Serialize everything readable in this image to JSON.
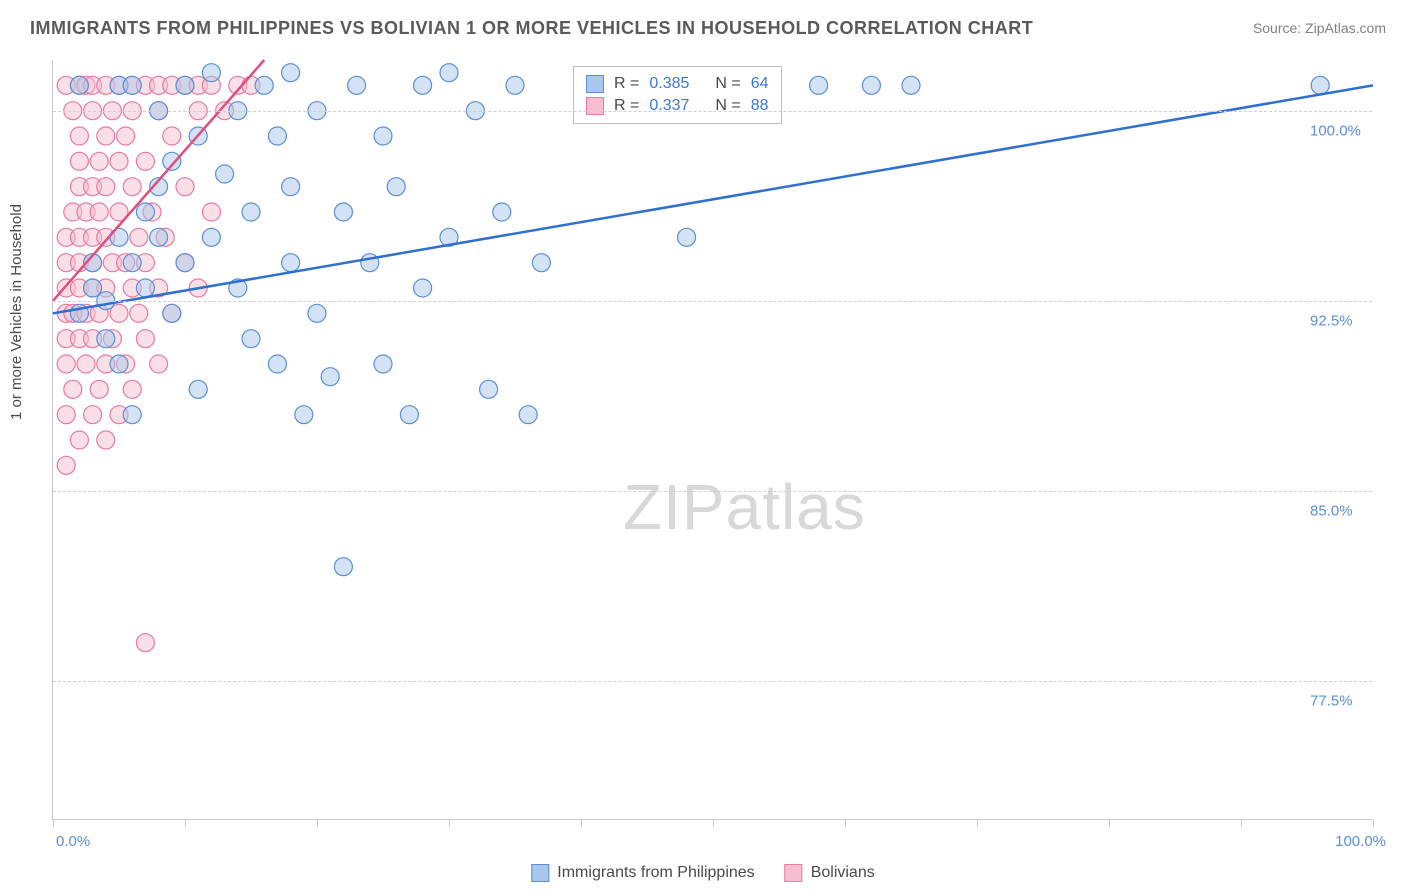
{
  "title": "IMMIGRANTS FROM PHILIPPINES VS BOLIVIAN 1 OR MORE VEHICLES IN HOUSEHOLD CORRELATION CHART",
  "source_label": "Source:",
  "source_value": "ZipAtlas.com",
  "ylabel": "1 or more Vehicles in Household",
  "watermark_a": "ZIP",
  "watermark_b": "atlas",
  "chart": {
    "type": "scatter",
    "xlim": [
      0,
      100
    ],
    "ylim": [
      72,
      102
    ],
    "x_axis_start_label": "0.0%",
    "x_axis_end_label": "100.0%",
    "x_ticks": [
      0,
      10,
      20,
      30,
      40,
      50,
      60,
      70,
      80,
      90,
      100
    ],
    "y_grid": [
      {
        "value": 100.0,
        "label": "100.0%"
      },
      {
        "value": 92.5,
        "label": "92.5%"
      },
      {
        "value": 85.0,
        "label": "85.0%"
      },
      {
        "value": 77.5,
        "label": "77.5%"
      }
    ],
    "marker_radius": 9,
    "marker_opacity": 0.5,
    "grid_color": "#d0d0d0",
    "axis_color": "#c8c8c8",
    "background_color": "#ffffff",
    "series": [
      {
        "id": "philippines",
        "label": "Immigrants from Philippines",
        "fill": "#a8c7ec",
        "stroke": "#5b8fd6",
        "line_color": "#2f6fd0",
        "R": "0.385",
        "N": "64",
        "trend": {
          "x1": 0,
          "y1": 92.0,
          "x2": 100,
          "y2": 101.0
        },
        "points": [
          [
            2,
            92
          ],
          [
            3,
            93
          ],
          [
            3,
            94
          ],
          [
            4,
            91
          ],
          [
            4,
            92.5
          ],
          [
            5,
            90
          ],
          [
            5,
            95
          ],
          [
            5,
            101
          ],
          [
            6,
            88
          ],
          [
            6,
            94
          ],
          [
            7,
            93
          ],
          [
            7,
            96
          ],
          [
            8,
            95
          ],
          [
            8,
            97
          ],
          [
            8,
            100
          ],
          [
            9,
            92
          ],
          [
            9,
            98
          ],
          [
            10,
            94
          ],
          [
            10,
            101
          ],
          [
            11,
            89
          ],
          [
            11,
            99
          ],
          [
            12,
            95
          ],
          [
            12,
            101.5
          ],
          [
            13,
            97.5
          ],
          [
            14,
            93
          ],
          [
            14,
            100
          ],
          [
            15,
            91
          ],
          [
            15,
            96
          ],
          [
            16,
            101
          ],
          [
            17,
            90
          ],
          [
            17,
            99
          ],
          [
            18,
            94
          ],
          [
            18,
            97
          ],
          [
            18,
            101.5
          ],
          [
            19,
            88
          ],
          [
            20,
            92
          ],
          [
            20,
            100
          ],
          [
            21,
            89.5
          ],
          [
            22,
            96
          ],
          [
            22,
            82
          ],
          [
            23,
            101
          ],
          [
            24,
            94
          ],
          [
            25,
            90
          ],
          [
            25,
            99
          ],
          [
            26,
            97
          ],
          [
            27,
            88
          ],
          [
            28,
            93
          ],
          [
            28,
            101
          ],
          [
            30,
            95
          ],
          [
            30,
            101.5
          ],
          [
            32,
            100
          ],
          [
            33,
            89
          ],
          [
            34,
            96
          ],
          [
            35,
            101
          ],
          [
            36,
            88
          ],
          [
            37,
            94
          ],
          [
            48,
            95
          ],
          [
            50,
            101
          ],
          [
            58,
            101
          ],
          [
            62,
            101
          ],
          [
            65,
            101
          ],
          [
            96,
            101
          ],
          [
            2,
            101
          ],
          [
            6,
            101
          ]
        ]
      },
      {
        "id": "bolivians",
        "label": "Bolivians",
        "fill": "#f5bfcf",
        "stroke": "#e97aa0",
        "line_color": "#e24d7e",
        "R": "0.337",
        "N": "88",
        "trend": {
          "x1": 0,
          "y1": 92.5,
          "x2": 16,
          "y2": 102
        },
        "points": [
          [
            1,
            86
          ],
          [
            1,
            88
          ],
          [
            1,
            90
          ],
          [
            1,
            91
          ],
          [
            1,
            92
          ],
          [
            1,
            93
          ],
          [
            1,
            94
          ],
          [
            1,
            95
          ],
          [
            1,
            101
          ],
          [
            1.5,
            89
          ],
          [
            1.5,
            92
          ],
          [
            1.5,
            96
          ],
          [
            1.5,
            100
          ],
          [
            2,
            87
          ],
          [
            2,
            91
          ],
          [
            2,
            93
          ],
          [
            2,
            94
          ],
          [
            2,
            95
          ],
          [
            2,
            97
          ],
          [
            2,
            98
          ],
          [
            2,
            99
          ],
          [
            2,
            101
          ],
          [
            2.5,
            90
          ],
          [
            2.5,
            92
          ],
          [
            2.5,
            96
          ],
          [
            2.5,
            101
          ],
          [
            3,
            88
          ],
          [
            3,
            91
          ],
          [
            3,
            93
          ],
          [
            3,
            94
          ],
          [
            3,
            95
          ],
          [
            3,
            97
          ],
          [
            3,
            100
          ],
          [
            3,
            101
          ],
          [
            3.5,
            89
          ],
          [
            3.5,
            92
          ],
          [
            3.5,
            96
          ],
          [
            3.5,
            98
          ],
          [
            4,
            87
          ],
          [
            4,
            90
          ],
          [
            4,
            93
          ],
          [
            4,
            95
          ],
          [
            4,
            97
          ],
          [
            4,
            99
          ],
          [
            4,
            101
          ],
          [
            4.5,
            91
          ],
          [
            4.5,
            94
          ],
          [
            4.5,
            100
          ],
          [
            5,
            88
          ],
          [
            5,
            92
          ],
          [
            5,
            96
          ],
          [
            5,
            98
          ],
          [
            5,
            101
          ],
          [
            5.5,
            90
          ],
          [
            5.5,
            94
          ],
          [
            5.5,
            99
          ],
          [
            6,
            89
          ],
          [
            6,
            93
          ],
          [
            6,
            97
          ],
          [
            6,
            100
          ],
          [
            6,
            101
          ],
          [
            6.5,
            92
          ],
          [
            6.5,
            95
          ],
          [
            7,
            79
          ],
          [
            7,
            91
          ],
          [
            7,
            94
          ],
          [
            7,
            98
          ],
          [
            7,
            101
          ],
          [
            7.5,
            96
          ],
          [
            8,
            90
          ],
          [
            8,
            93
          ],
          [
            8,
            100
          ],
          [
            8,
            101
          ],
          [
            8.5,
            95
          ],
          [
            9,
            92
          ],
          [
            9,
            99
          ],
          [
            9,
            101
          ],
          [
            10,
            94
          ],
          [
            10,
            97
          ],
          [
            10,
            101
          ],
          [
            11,
            93
          ],
          [
            11,
            100
          ],
          [
            11,
            101
          ],
          [
            12,
            96
          ],
          [
            12,
            101
          ],
          [
            13,
            100
          ],
          [
            14,
            101
          ],
          [
            15,
            101
          ]
        ]
      }
    ]
  },
  "legend_bottom": [
    {
      "series": 0
    },
    {
      "series": 1
    }
  ]
}
